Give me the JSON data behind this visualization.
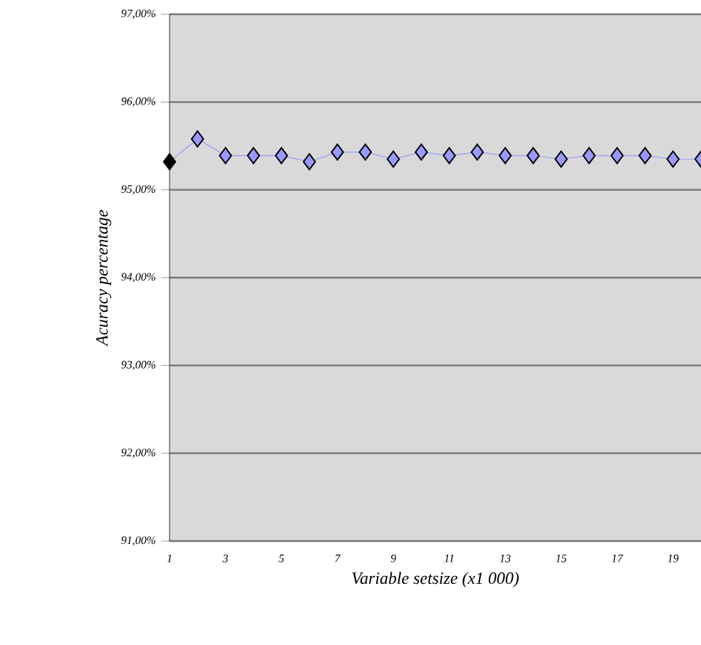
{
  "chart_data": {
    "type": "line",
    "xlabel": "Variable setsize (x1 000)",
    "ylabel": "Acuracy percentage",
    "categories": [
      "1",
      null,
      "3",
      null,
      "5",
      null,
      "7",
      null,
      "9",
      null,
      "11",
      null,
      "13",
      null,
      "15",
      null,
      "17",
      null,
      "19",
      null
    ],
    "series": [
      {
        "color": "#9999ff",
        "colors": [
          "#000000",
          "#9999ff",
          "#9999ff",
          "#9999ff",
          "#9999ff",
          "#9999ff",
          "#9999ff",
          "#9999ff",
          "#9999ff",
          "#9999ff",
          "#9999ff",
          "#9999ff",
          "#9999ff",
          "#9999ff",
          "#9999ff",
          "#9999ff",
          "#9999ff",
          "#9999ff",
          "#9999ff",
          "#9999ff"
        ],
        "values": [
          95.32,
          95.58,
          95.39,
          95.39,
          95.39,
          95.32,
          95.43,
          95.43,
          95.35,
          95.43,
          95.39,
          95.43,
          95.39,
          95.39,
          95.35,
          95.39,
          95.39,
          95.39,
          95.35,
          95.35
        ]
      }
    ],
    "ylim": [
      91,
      97
    ],
    "yticks": [
      {
        "value": 91,
        "label": "91,00%"
      },
      {
        "value": 92,
        "label": "92,00%"
      },
      {
        "value": 93,
        "label": "93,00%"
      },
      {
        "value": 94,
        "label": "94,00%"
      },
      {
        "value": 95,
        "label": "95,00%"
      },
      {
        "value": 96,
        "label": "96,00%"
      },
      {
        "value": 97,
        "label": "97,00%"
      }
    ],
    "grid": "y",
    "marker": "diamond",
    "line_style": "solid",
    "legend": false
  }
}
